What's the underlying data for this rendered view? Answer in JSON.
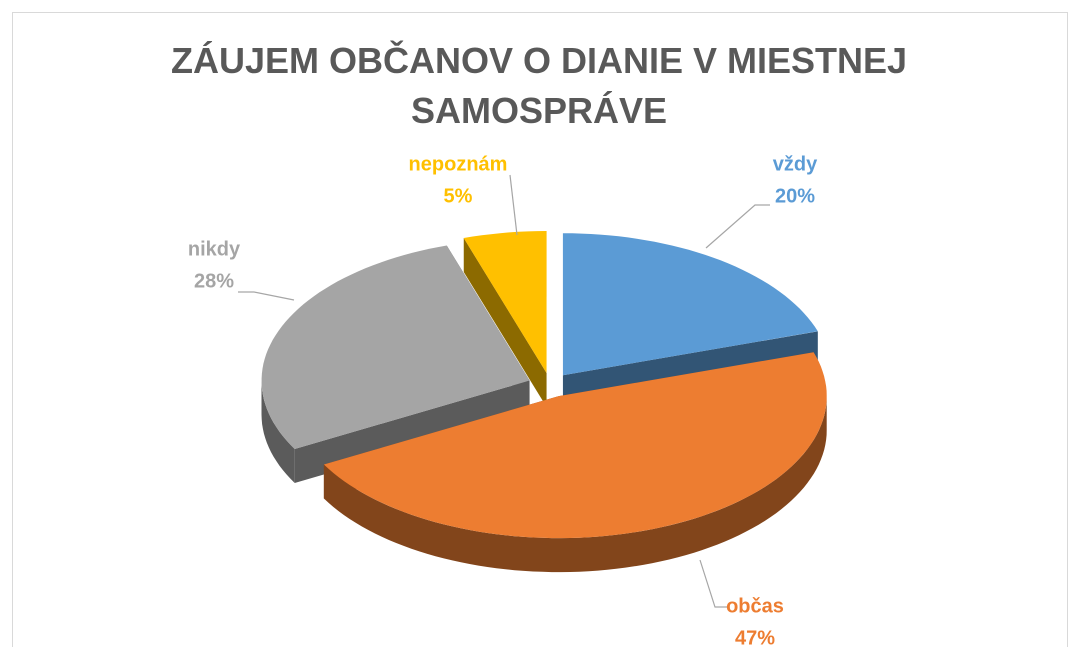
{
  "chart_data": {
    "type": "pie",
    "title": "ZÁUJEM OBČANOV O DIANIE V MIESTNEJ SAMOSPRÁVE",
    "categories": [
      "vždy",
      "občas",
      "nikdy",
      "nepoznám"
    ],
    "values": [
      20,
      47,
      28,
      5
    ],
    "value_labels": [
      "20%",
      "47%",
      "28%",
      "5%"
    ],
    "colors": [
      "#5b9bd5",
      "#ed7d31",
      "#a5a5a5",
      "#ffc000"
    ],
    "exploded": true,
    "three_d": true
  }
}
